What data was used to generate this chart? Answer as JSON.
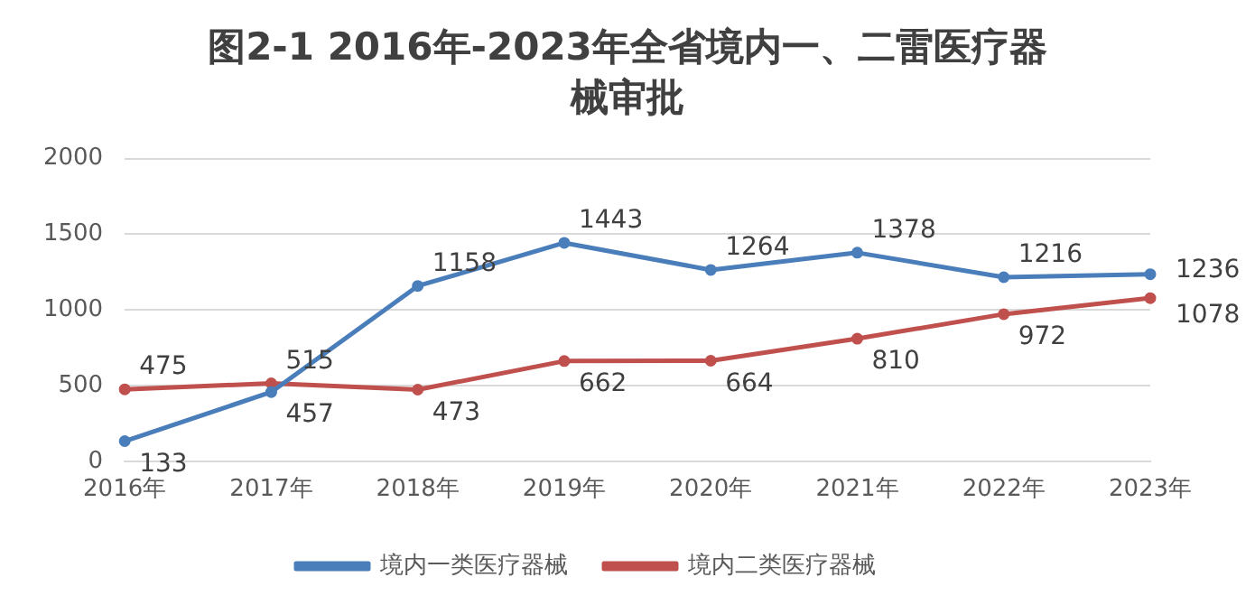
{
  "chart_data": {
    "type": "line",
    "title": "图2-1  2016年-2023年全省境内一、二雷医疗器械审批",
    "categories": [
      "2016年",
      "2017年",
      "2018年",
      "2019年",
      "2020年",
      "2021年",
      "2022年",
      "2023年"
    ],
    "series": [
      {
        "name": "境内一类医疗器械",
        "color": "#4a7ebb",
        "values": [
          133,
          457,
          1158,
          1443,
          1264,
          1378,
          1216,
          1236
        ]
      },
      {
        "name": "境内二类医疗器械",
        "color": "#c0504d",
        "values": [
          475,
          515,
          473,
          662,
          664,
          810,
          972,
          1078
        ]
      }
    ],
    "ylim": [
      0,
      2000
    ],
    "yticks": [
      0,
      500,
      1000,
      1500,
      2000
    ],
    "grid": "y",
    "legend": "bottom",
    "marker": "circle",
    "line_style": "solid",
    "data_labels": true
  }
}
